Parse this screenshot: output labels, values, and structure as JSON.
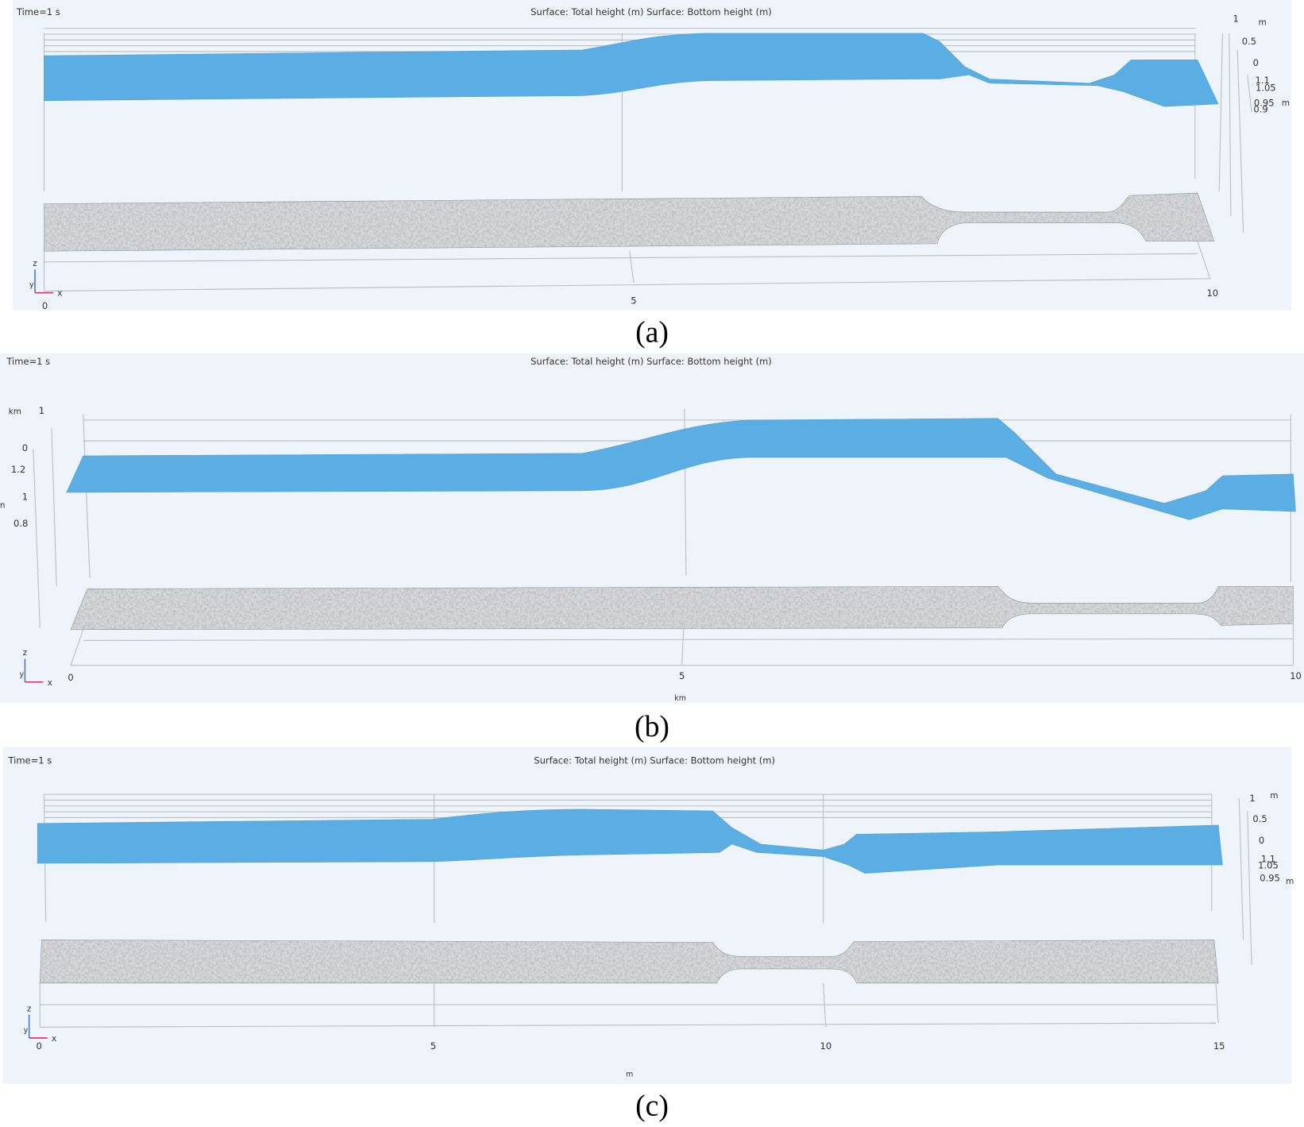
{
  "panels": [
    {
      "time": "Time=1 s",
      "surface": "Surface: Total height (m)  Surface: Bottom height (m)",
      "x_ticks": [
        "0",
        "5",
        "10"
      ],
      "z_ticks": [
        "1",
        "0.5",
        "0"
      ],
      "z_unit": "m",
      "color_ticks": [
        "1.1",
        "1.05",
        "0.95",
        "0.9"
      ],
      "color_unit": "m",
      "axes": [
        "z",
        "y",
        "x"
      ],
      "caption": "(a)"
    },
    {
      "time": "Time=1 s",
      "surface": "Surface: Total height (m)  Surface: Bottom height (m)",
      "x_ticks": [
        "0",
        "5",
        "10"
      ],
      "x_unit": "km",
      "z_ticks": [
        "1",
        "0"
      ],
      "z_unit": "km",
      "color_ticks": [
        "1.2",
        "1",
        "0.8"
      ],
      "color_unit": "n",
      "axes": [
        "z",
        "y",
        "x"
      ],
      "caption": "(b)"
    },
    {
      "time": "Time=1 s",
      "surface": "Surface: Total height (m)  Surface: Bottom height (m)",
      "x_ticks": [
        "0",
        "5",
        "10",
        "15"
      ],
      "x_unit": "m",
      "z_ticks": [
        "1",
        "0.5",
        "0"
      ],
      "z_unit": "m",
      "color_ticks": [
        "1.1",
        "1.05",
        "0.95"
      ],
      "color_unit": "m",
      "axes": [
        "z",
        "y",
        "x"
      ],
      "caption": "(c)"
    }
  ]
}
